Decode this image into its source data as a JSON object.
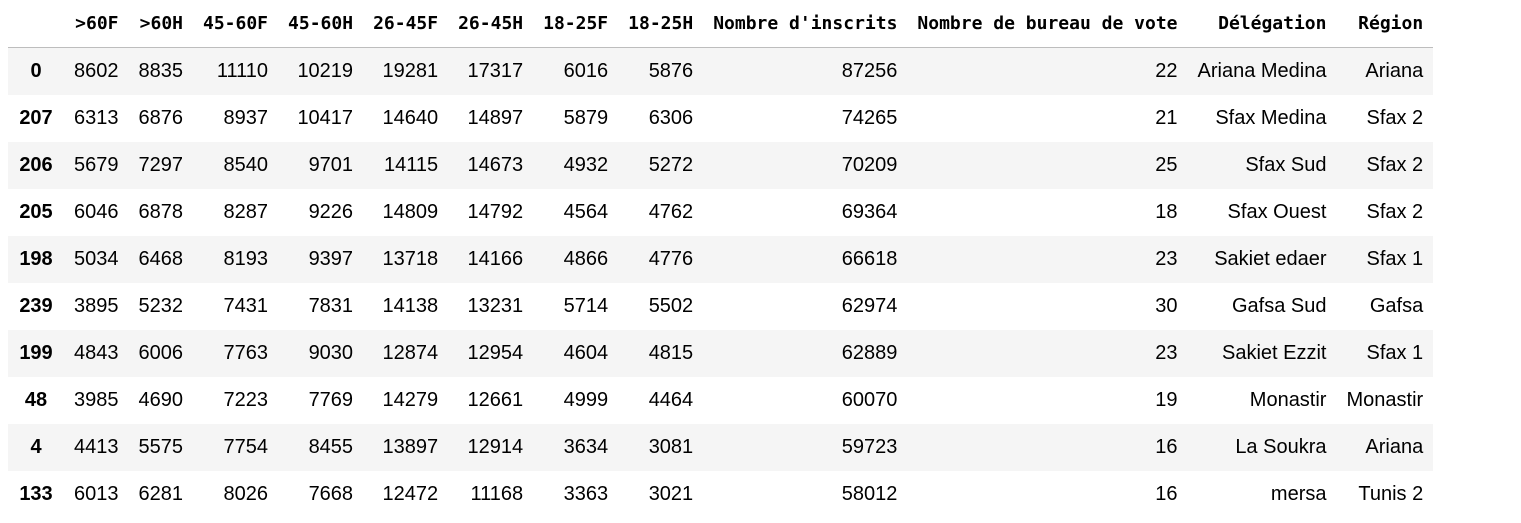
{
  "table": {
    "columns": [
      ">60F",
      ">60H",
      "45-60F",
      "45-60H",
      "26-45F",
      "26-45H",
      "18-25F",
      "18-25H",
      "Nombre d'inscrits",
      "Nombre de bureau de vote",
      "Délégation",
      "Région"
    ],
    "rows": [
      {
        "index": "0",
        "cells": [
          "8602",
          "8835",
          "11110",
          "10219",
          "19281",
          "17317",
          "6016",
          "5876",
          "87256",
          "22",
          "Ariana Medina",
          "Ariana"
        ]
      },
      {
        "index": "207",
        "cells": [
          "6313",
          "6876",
          "8937",
          "10417",
          "14640",
          "14897",
          "5879",
          "6306",
          "74265",
          "21",
          "Sfax Medina",
          "Sfax 2"
        ]
      },
      {
        "index": "206",
        "cells": [
          "5679",
          "7297",
          "8540",
          "9701",
          "14115",
          "14673",
          "4932",
          "5272",
          "70209",
          "25",
          "Sfax Sud",
          "Sfax 2"
        ]
      },
      {
        "index": "205",
        "cells": [
          "6046",
          "6878",
          "8287",
          "9226",
          "14809",
          "14792",
          "4564",
          "4762",
          "69364",
          "18",
          "Sfax Ouest",
          "Sfax 2"
        ]
      },
      {
        "index": "198",
        "cells": [
          "5034",
          "6468",
          "8193",
          "9397",
          "13718",
          "14166",
          "4866",
          "4776",
          "66618",
          "23",
          "Sakiet edaer",
          "Sfax 1"
        ]
      },
      {
        "index": "239",
        "cells": [
          "3895",
          "5232",
          "7431",
          "7831",
          "14138",
          "13231",
          "5714",
          "5502",
          "62974",
          "30",
          "Gafsa Sud",
          "Gafsa"
        ]
      },
      {
        "index": "199",
        "cells": [
          "4843",
          "6006",
          "7763",
          "9030",
          "12874",
          "12954",
          "4604",
          "4815",
          "62889",
          "23",
          "Sakiet Ezzit",
          "Sfax 1"
        ]
      },
      {
        "index": "48",
        "cells": [
          "3985",
          "4690",
          "7223",
          "7769",
          "14279",
          "12661",
          "4999",
          "4464",
          "60070",
          "19",
          "Monastir",
          "Monastir"
        ]
      },
      {
        "index": "4",
        "cells": [
          "4413",
          "5575",
          "7754",
          "8455",
          "13897",
          "12914",
          "3634",
          "3081",
          "59723",
          "16",
          "La Soukra",
          "Ariana"
        ]
      },
      {
        "index": "133",
        "cells": [
          "6013",
          "6281",
          "8026",
          "7668",
          "12472",
          "11168",
          "3363",
          "3021",
          "58012",
          "16",
          "mersa",
          "Tunis 2"
        ]
      }
    ]
  }
}
